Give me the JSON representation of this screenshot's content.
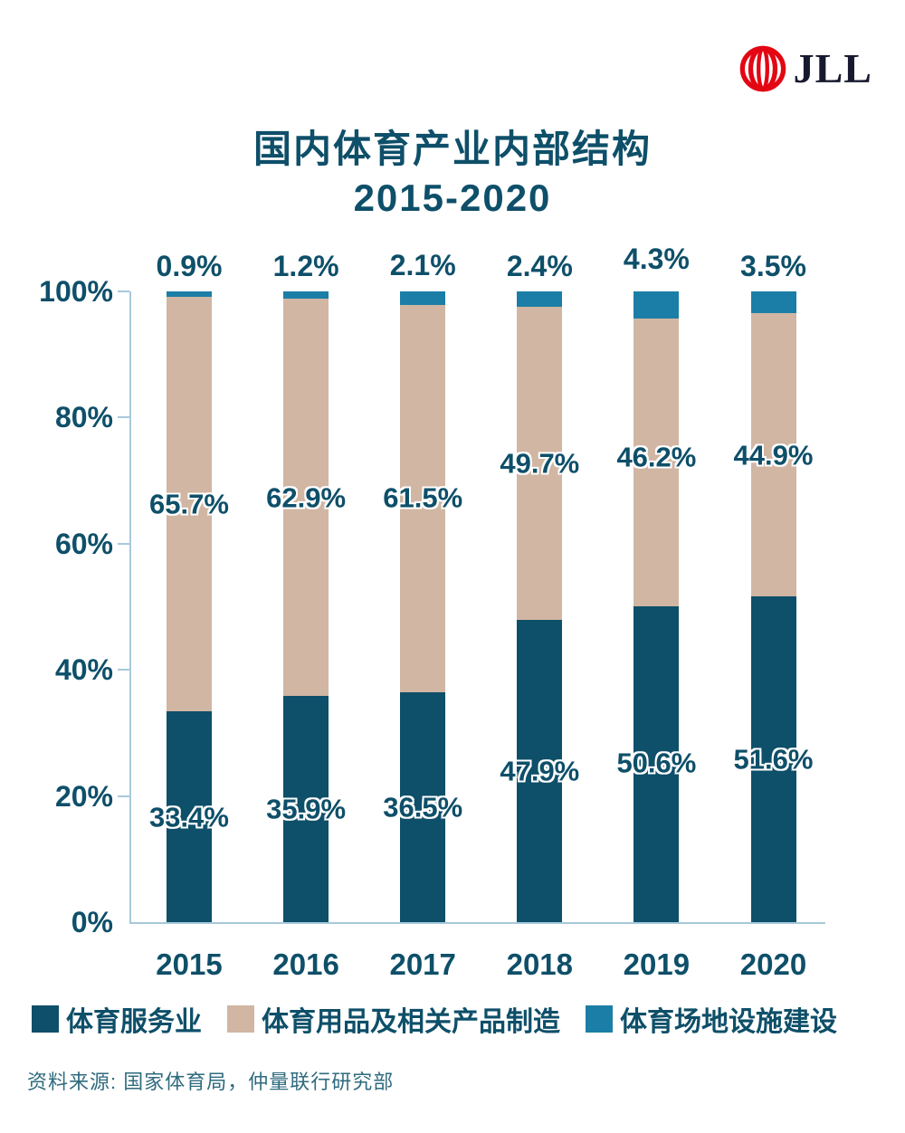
{
  "logo": {
    "brand": "JLL",
    "mark_color": "#e30613",
    "text_color": "#171a2e"
  },
  "title": {
    "line1": "国内体育产业内部结构",
    "line2": "2015-2020"
  },
  "chart_data": {
    "type": "bar",
    "subtype": "stacked-percent",
    "title": "国内体育产业内部结构 2015-2020",
    "categories": [
      "2015",
      "2016",
      "2017",
      "2018",
      "2019",
      "2020"
    ],
    "series": [
      {
        "name": "体育服务业",
        "color": "#0e4f69",
        "values": [
          33.4,
          35.9,
          36.5,
          47.9,
          50.6,
          51.6
        ]
      },
      {
        "name": "体育用品及相关产品制造",
        "color": "#d0b6a3",
        "values": [
          65.7,
          62.9,
          61.5,
          49.7,
          46.2,
          44.9
        ]
      },
      {
        "name": "体育场地设施建设",
        "color": "#1b7ea6",
        "values": [
          0.9,
          1.2,
          2.1,
          2.4,
          4.3,
          3.5
        ]
      }
    ],
    "xlabel": "",
    "ylabel": "",
    "ylim": [
      0,
      100
    ],
    "yticks": [
      "0%",
      "20%",
      "40%",
      "60%",
      "80%",
      "100%"
    ],
    "grid": false,
    "legend_position": "bottom",
    "data_label_format": "one-decimal-percent"
  },
  "source": {
    "text": "资料来源: 国家体育局，仲量联行研究部"
  },
  "colors": {
    "text": "#0e4f69",
    "axis": "#a7c9db",
    "source_text": "#2f6b7e",
    "logo_red": "#e30613",
    "logo_text": "#171a2e"
  }
}
